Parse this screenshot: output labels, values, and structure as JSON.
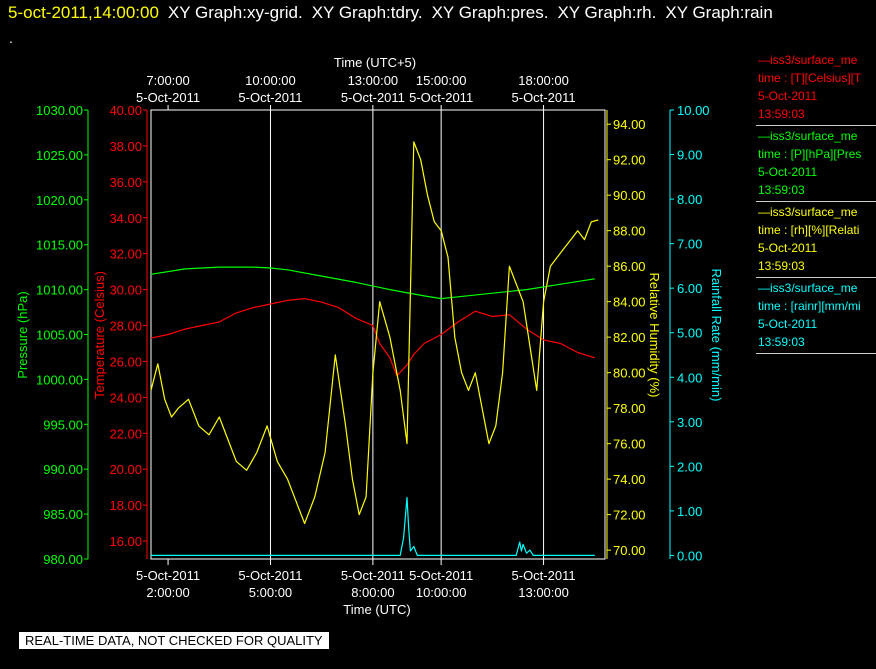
{
  "header": {
    "timestamp": "5-oct-2011,14:00:00",
    "graphs": [
      "XY Graph:xy-grid.",
      "XY Graph:tdry.",
      "XY Graph:pres.",
      "XY Graph:rh.",
      "XY Graph:rain"
    ]
  },
  "dot": ".",
  "quality_note": "REAL-TIME DATA, NOT CHECKED FOR QUALITY",
  "legend": [
    {
      "line1": "—iss3/surface_me",
      "line2": "time : [T][Celsius][T",
      "line3": "5-Oct-2011",
      "line4": "13:59:03",
      "color": "#ff0000"
    },
    {
      "line1": "—iss3/surface_me",
      "line2": "time : [P][hPa][Pres",
      "line3": "5-Oct-2011",
      "line4": "13:59:03",
      "color": "#00ff00"
    },
    {
      "line1": "—iss3/surface_me",
      "line2": "time : [rh][%][Relati",
      "line3": "5-Oct-2011",
      "line4": "13:59:03",
      "color": "#ffff00"
    },
    {
      "line1": "—iss3/surface_me",
      "line2": "time : [rainr][mm/mi",
      "line3": "5-Oct-2011",
      "line4": "13:59:03",
      "color": "#00ffff"
    }
  ],
  "chart_data": {
    "type": "line",
    "xlabel_bottom": "Time (UTC)",
    "xlabel_top": "Time (UTC+5)",
    "xlim": [
      1.5,
      14.8
    ],
    "bottom_ticks": [
      {
        "x": 2,
        "date": "5-Oct-2011",
        "time": "2:00:00"
      },
      {
        "x": 5,
        "date": "5-Oct-2011",
        "time": "5:00:00"
      },
      {
        "x": 8,
        "date": "5-Oct-2011",
        "time": "8:00:00"
      },
      {
        "x": 10,
        "date": "5-Oct-2011",
        "time": "10:00:00"
      },
      {
        "x": 13,
        "date": "5-Oct-2011",
        "time": "13:00:00"
      }
    ],
    "top_ticks": [
      {
        "x": 2,
        "date": "5-Oct-2011",
        "time": "7:00:00"
      },
      {
        "x": 5,
        "date": "5-Oct-2011",
        "time": "10:00:00"
      },
      {
        "x": 8,
        "date": "5-Oct-2011",
        "time": "13:00:00"
      },
      {
        "x": 10,
        "date": "5-Oct-2011",
        "time": "15:00:00"
      },
      {
        "x": 13,
        "date": "5-Oct-2011",
        "time": "18:00:00"
      }
    ],
    "gridlines_x": [
      5,
      8,
      10,
      13
    ],
    "axes": {
      "pressure": {
        "label": "Pressure (hPa)",
        "color": "#00ff00",
        "min": 980,
        "max": 1030,
        "ticks": [
          "980.00",
          "985.00",
          "990.00",
          "995.00",
          "1000.00",
          "1005.00",
          "1010.00",
          "1015.00",
          "1020.00",
          "1025.00",
          "1030.00"
        ]
      },
      "temperature": {
        "label": "Temperature (Celsius)",
        "color": "#ff0000",
        "min": 15,
        "max": 40,
        "ticks": [
          "16.00",
          "18.00",
          "20.00",
          "22.00",
          "24.00",
          "26.00",
          "28.00",
          "30.00",
          "32.00",
          "34.00",
          "36.00",
          "38.00",
          "40.00"
        ]
      },
      "rh": {
        "label": "Relative Humidity (%)",
        "color": "#ffff00",
        "min": 69.5,
        "max": 94.8,
        "ticks": [
          "70.00",
          "72.00",
          "74.00",
          "76.00",
          "78.00",
          "80.00",
          "82.00",
          "84.00",
          "86.00",
          "88.00",
          "90.00",
          "92.00",
          "94.00"
        ]
      },
      "rain": {
        "label": "Rainfall Rate (mm/min)",
        "color": "#00ffff",
        "min": -0.08,
        "max": 10,
        "ticks": [
          "0.00",
          "1.00",
          "2.00",
          "3.00",
          "4.00",
          "5.00",
          "6.00",
          "7.00",
          "8.00",
          "9.00",
          "10.00"
        ]
      }
    },
    "series": [
      {
        "axis": "pressure",
        "color": "#00ff00",
        "x": [
          1.5,
          2.5,
          3.5,
          4.5,
          5.0,
          5.5,
          6.5,
          7.5,
          8.5,
          9.5,
          10.0,
          10.5,
          11.5,
          12.5,
          13.5,
          14.5
        ],
        "y": [
          1011.7,
          1012.3,
          1012.5,
          1012.5,
          1012.4,
          1012.2,
          1011.5,
          1010.8,
          1010.0,
          1009.3,
          1009.0,
          1009.2,
          1009.6,
          1010.0,
          1010.6,
          1011.2
        ]
      },
      {
        "axis": "temperature",
        "color": "#ff0000",
        "x": [
          1.5,
          2.0,
          2.5,
          3.0,
          3.5,
          4.0,
          4.5,
          5.0,
          5.5,
          6.0,
          6.5,
          7.0,
          7.5,
          8.0,
          8.2,
          8.5,
          8.7,
          9.0,
          9.2,
          9.5,
          10.0,
          10.5,
          11.0,
          11.5,
          12.0,
          12.5,
          13.0,
          13.5,
          14.0,
          14.5
        ],
        "y": [
          27.3,
          27.5,
          27.8,
          28.0,
          28.2,
          28.7,
          29.0,
          29.2,
          29.4,
          29.5,
          29.3,
          29.0,
          28.4,
          28.0,
          27.0,
          26.2,
          25.2,
          25.8,
          26.4,
          27.0,
          27.5,
          28.2,
          28.8,
          28.5,
          28.6,
          27.8,
          27.2,
          27.0,
          26.5,
          26.2
        ]
      },
      {
        "axis": "rh",
        "color": "#ffff00",
        "x": [
          1.5,
          1.7,
          1.9,
          2.1,
          2.3,
          2.6,
          2.9,
          3.2,
          3.5,
          3.8,
          4.0,
          4.3,
          4.6,
          4.9,
          5.2,
          5.5,
          5.8,
          6.0,
          6.3,
          6.6,
          6.9,
          7.2,
          7.4,
          7.6,
          7.8,
          8.0,
          8.2,
          8.5,
          8.8,
          9.0,
          9.2,
          9.4,
          9.6,
          9.8,
          10.0,
          10.2,
          10.4,
          10.6,
          10.8,
          11.0,
          11.2,
          11.4,
          11.6,
          11.8,
          12.0,
          12.2,
          12.4,
          12.6,
          12.8,
          13.0,
          13.2,
          13.4,
          13.6,
          13.8,
          14.0,
          14.2,
          14.4,
          14.6
        ],
        "y": [
          79,
          80.5,
          78.5,
          77.5,
          78,
          78.5,
          77,
          76.5,
          77.5,
          76,
          75,
          74.5,
          75.5,
          77,
          75,
          74,
          72.5,
          71.5,
          73,
          75.5,
          81,
          77,
          74,
          72,
          73,
          80,
          84,
          82,
          79,
          76,
          93,
          92,
          90,
          88.5,
          88,
          86.5,
          82,
          80,
          79,
          80,
          78,
          76,
          77,
          80,
          86,
          85,
          84,
          81.5,
          79,
          84,
          86,
          86.5,
          87,
          87.5,
          88,
          87.5,
          88.5,
          88.6
        ]
      },
      {
        "axis": "rain",
        "color": "#00ffff",
        "x": [
          1.5,
          8.8,
          8.9,
          9.0,
          9.05,
          9.1,
          9.2,
          9.3,
          9.5,
          11.5,
          12.2,
          12.3,
          12.35,
          12.4,
          12.5,
          12.6,
          12.7,
          13.0,
          14.5
        ],
        "y": [
          0,
          0,
          0.4,
          1.3,
          0.6,
          0.1,
          0.2,
          0,
          0,
          0,
          0,
          0.3,
          0.1,
          0.25,
          0.05,
          0.12,
          0,
          0,
          0
        ]
      }
    ]
  }
}
